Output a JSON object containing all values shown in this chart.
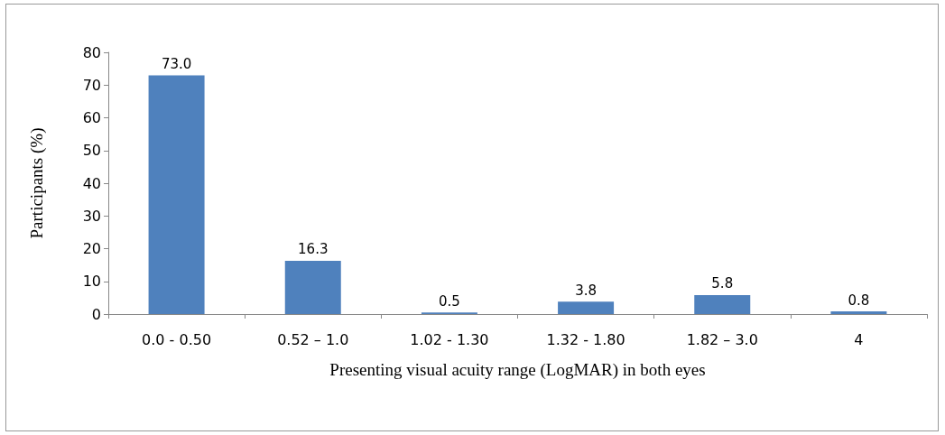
{
  "chart_data": {
    "type": "bar",
    "categories": [
      "0.0 - 0.50",
      "0.52 – 1.0",
      "1.02 - 1.30",
      "1.32 - 1.80",
      "1.82 – 3.0",
      "4"
    ],
    "values": [
      73.0,
      16.3,
      0.5,
      3.8,
      5.8,
      0.8
    ],
    "value_labels": [
      "73.0",
      "16.3",
      "0.5",
      "3.8",
      "5.8",
      "0.8"
    ],
    "color": "#4f81bd",
    "xlabel": "Presenting visual acuity range (LogMAR) in both eyes",
    "ylabel": "Participants (%)",
    "ylim": [
      0,
      80
    ],
    "yticks": [
      0,
      10,
      20,
      30,
      40,
      50,
      60,
      70,
      80
    ],
    "grid": false
  }
}
